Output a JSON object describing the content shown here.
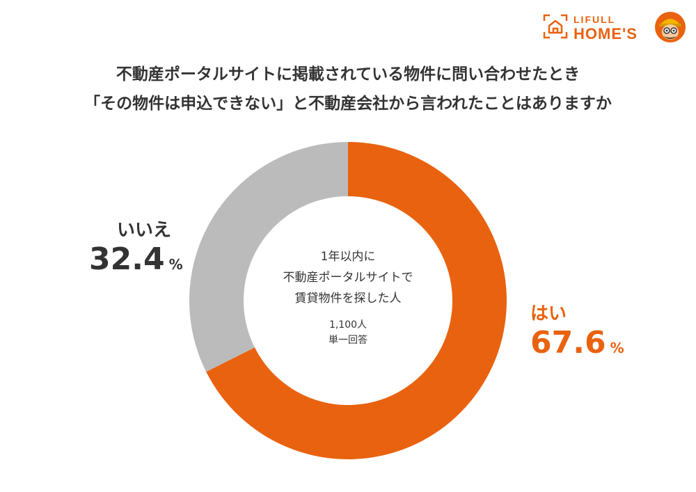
{
  "logo": {
    "line1": "LIFULL",
    "line2": "HOME'S",
    "house_icon": "house-icon",
    "mascot_icon": "mascot-icon"
  },
  "title_lines": [
    "不動産ポータルサイトに掲載されている物件に問い合わせたとき",
    "「その物件は申込できない」と不動産会社から言われたことはありますか"
  ],
  "center": {
    "lines": [
      "1年以内に",
      "不動産ポータルサイトで",
      "賃貸物件を探した人"
    ],
    "count": "1,100人",
    "note": "単一回答"
  },
  "labels": {
    "yes": {
      "name": "はい",
      "value": "67.6",
      "unit": "%"
    },
    "no": {
      "name": "いいえ",
      "value": "32.4",
      "unit": "%"
    }
  },
  "colors": {
    "yes": "#e9620f",
    "no": "#bbbbbb",
    "text": "#333333",
    "brand": "#e9620f"
  },
  "chart_data": {
    "type": "pie",
    "donut": true,
    "start": "top",
    "direction": "clockwise",
    "categories": [
      "はい",
      "いいえ"
    ],
    "values": [
      67.6,
      32.4
    ],
    "colors": [
      "#e9620f",
      "#bbbbbb"
    ]
  }
}
